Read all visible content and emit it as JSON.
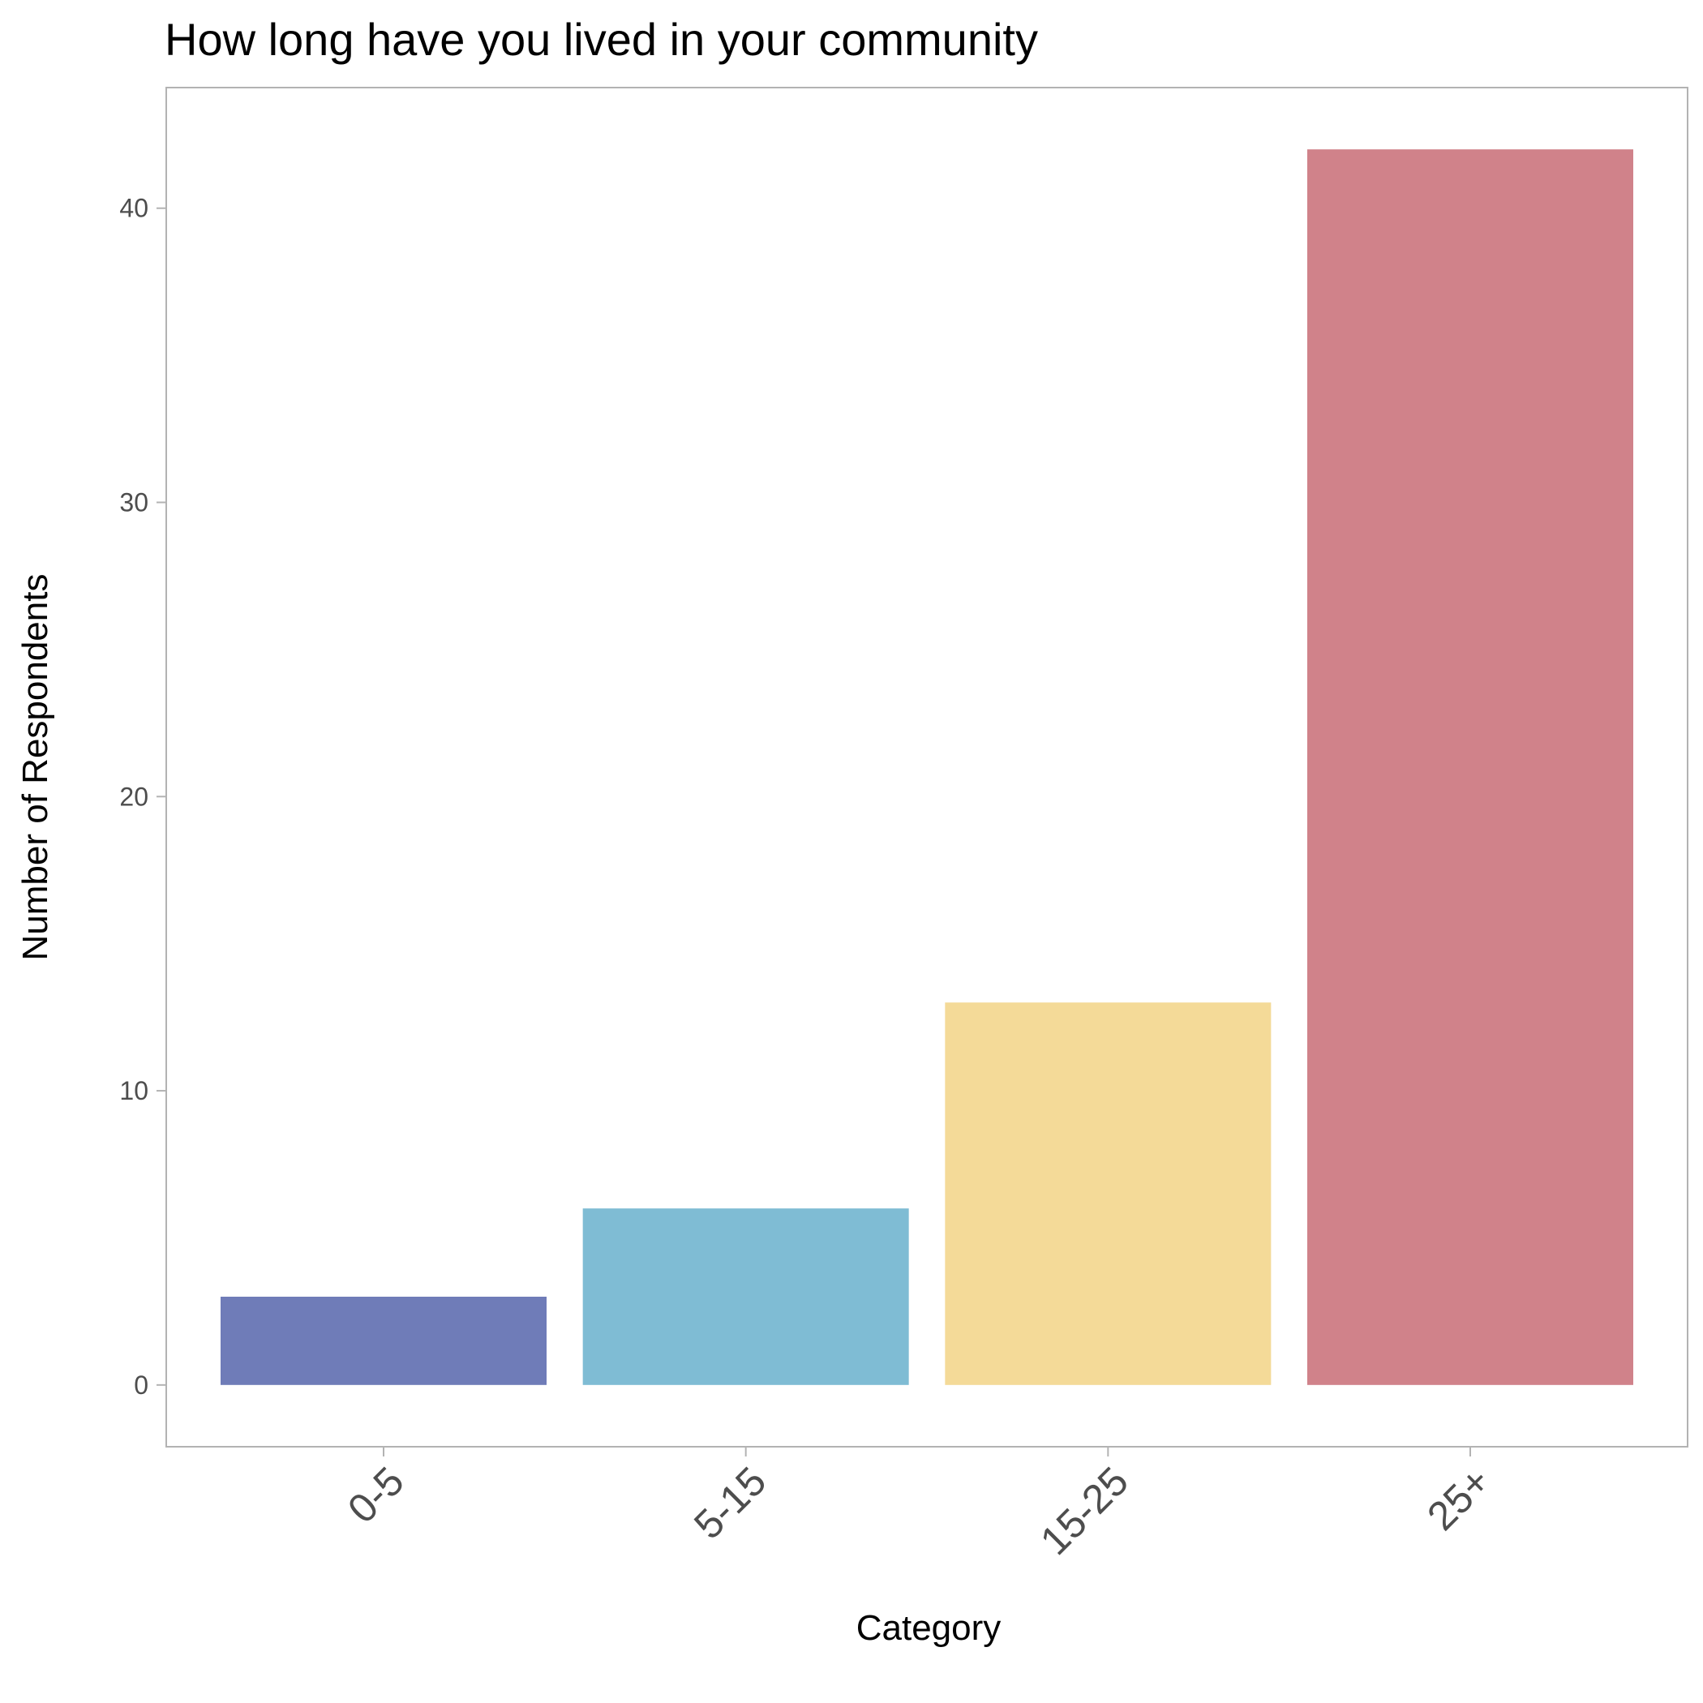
{
  "chart_data": {
    "type": "bar",
    "title": "How long have you lived in your community",
    "xlabel": "Category",
    "ylabel": "Number of Respondents",
    "categories": [
      "0-5",
      "5-15",
      "15-25",
      "25+"
    ],
    "values": [
      3,
      6,
      13,
      42
    ],
    "colors": [
      "#6f7cb8",
      "#7fbcd4",
      "#f4da98",
      "#d0828a"
    ],
    "ylim": [
      -2.1,
      44.1
    ],
    "yticks": [
      0,
      10,
      20,
      30,
      40
    ],
    "grid": false,
    "legend": "none"
  }
}
